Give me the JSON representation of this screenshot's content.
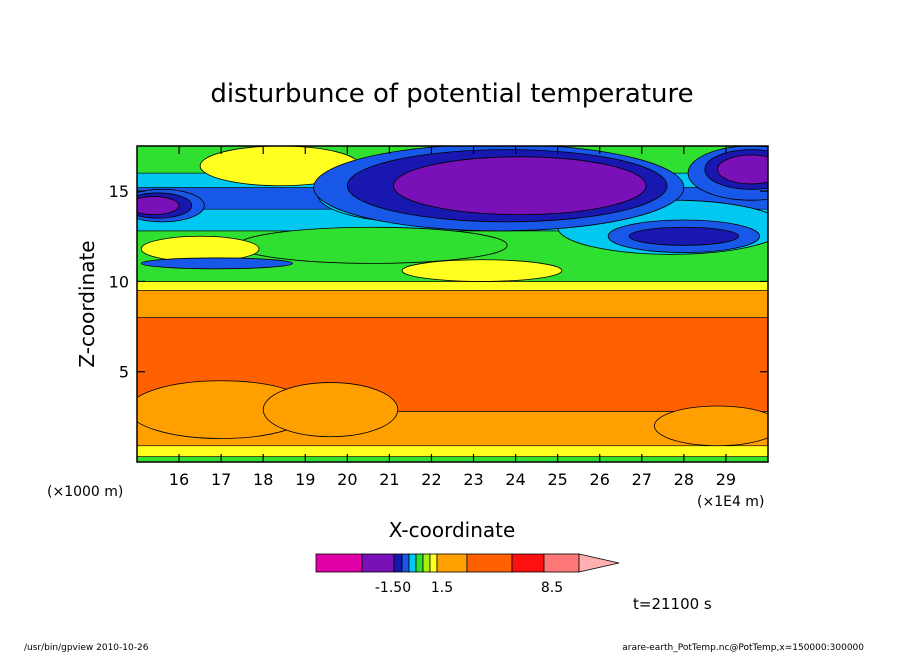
{
  "chart_data": {
    "type": "heatmap",
    "title": "disturbunce of potential temperature",
    "xlabel": "X-coordinate",
    "ylabel": "Z-coordinate",
    "x_unit_left": "(×1000 m)",
    "x_unit_right": "(×1E4 m)",
    "xlim": [
      15.0,
      30.0
    ],
    "ylim": [
      0.0,
      17.5
    ],
    "x_ticks": [
      16,
      17,
      18,
      19,
      20,
      21,
      22,
      23,
      24,
      25,
      26,
      27,
      28,
      29
    ],
    "y_ticks": [
      5,
      10,
      15
    ],
    "colorbar": {
      "colors": [
        "#e000a8",
        "#7a10b8",
        "#1818b0",
        "#1858e8",
        "#00c8f0",
        "#30e030",
        "#a8f010",
        "#ffff20",
        "#ffa000",
        "#ff6000",
        "#ff1010",
        "#ff7878",
        "#ffb0b0"
      ],
      "tick_labels": [
        "-1.50",
        "1.5",
        "8.5"
      ],
      "extend": "max"
    },
    "background_layers": [
      {
        "z": 0.0,
        "color": "#30e030"
      },
      {
        "z": 0.3,
        "color": "#ffff20"
      },
      {
        "z": 0.9,
        "color": "#ffa000"
      },
      {
        "z": 2.8,
        "color": "#ff6000"
      },
      {
        "z": 8.0,
        "color": "#ffa000"
      },
      {
        "z": 9.5,
        "color": "#ffff20"
      },
      {
        "z": 10.0,
        "color": "#30e030"
      },
      {
        "z": 12.8,
        "color": "#00c8f0"
      },
      {
        "z": 14.0,
        "color": "#1858e8"
      },
      {
        "z": 15.2,
        "color": "#00c8f0"
      },
      {
        "z": 16.0,
        "color": "#30e030"
      }
    ],
    "features": [
      {
        "color": "#ffa000",
        "cx": 17.0,
        "cz": 2.9,
        "rx": 2.2,
        "rz": 1.6
      },
      {
        "color": "#ffa000",
        "cx": 19.6,
        "cz": 2.9,
        "rx": 1.6,
        "rz": 1.5
      },
      {
        "color": "#ffa000",
        "cx": 28.8,
        "cz": 2.0,
        "rx": 1.5,
        "rz": 1.1
      },
      {
        "color": "#30e030",
        "cx": 20.6,
        "cz": 12.0,
        "rx": 3.2,
        "rz": 1.0
      },
      {
        "color": "#ffff20",
        "cx": 16.5,
        "cz": 11.8,
        "rx": 1.4,
        "rz": 0.7
      },
      {
        "color": "#ffff20",
        "cx": 23.2,
        "cz": 10.6,
        "rx": 1.9,
        "rz": 0.6
      },
      {
        "color": "#1858e8",
        "cx": 16.9,
        "cz": 11.0,
        "rx": 1.8,
        "rz": 0.3
      },
      {
        "color": "#ffff20",
        "cx": 18.4,
        "cz": 16.4,
        "rx": 1.9,
        "rz": 1.1
      },
      {
        "color": "#00c8f0",
        "cx": 21.5,
        "cz": 14.8,
        "rx": 2.2,
        "rz": 1.5
      },
      {
        "color": "#00c8f0",
        "cx": 27.7,
        "cz": 13.0,
        "rx": 2.7,
        "rz": 1.5
      },
      {
        "color": "#1858e8",
        "cx": 23.6,
        "cz": 15.2,
        "rx": 4.4,
        "rz": 2.4
      },
      {
        "color": "#1818b0",
        "cx": 23.8,
        "cz": 15.3,
        "rx": 3.8,
        "rz": 2.0
      },
      {
        "color": "#7a10b8",
        "cx": 24.1,
        "cz": 15.3,
        "rx": 3.0,
        "rz": 1.6
      },
      {
        "color": "#1858e8",
        "cx": 15.6,
        "cz": 14.2,
        "rx": 1.0,
        "rz": 0.9
      },
      {
        "color": "#1818b0",
        "cx": 15.5,
        "cz": 14.2,
        "rx": 0.8,
        "rz": 0.7
      },
      {
        "color": "#7a10b8",
        "cx": 15.4,
        "cz": 14.2,
        "rx": 0.6,
        "rz": 0.5
      },
      {
        "color": "#1858e8",
        "cx": 28.0,
        "cz": 12.5,
        "rx": 1.8,
        "rz": 0.9
      },
      {
        "color": "#1818b0",
        "cx": 28.0,
        "cz": 12.5,
        "rx": 1.3,
        "rz": 0.5
      },
      {
        "color": "#1858e8",
        "cx": 29.6,
        "cz": 16.0,
        "rx": 1.5,
        "rz": 1.5
      },
      {
        "color": "#1818b0",
        "cx": 29.6,
        "cz": 16.2,
        "rx": 1.1,
        "rz": 1.1
      },
      {
        "color": "#7a10b8",
        "cx": 29.6,
        "cz": 16.2,
        "rx": 0.8,
        "rz": 0.8
      }
    ]
  },
  "time_label": "t=21100 s",
  "footer": {
    "left": "/usr/bin/gpview   2010-10-26",
    "right": "arare-earth_PotTemp.nc@PotTemp,x=150000:300000"
  }
}
